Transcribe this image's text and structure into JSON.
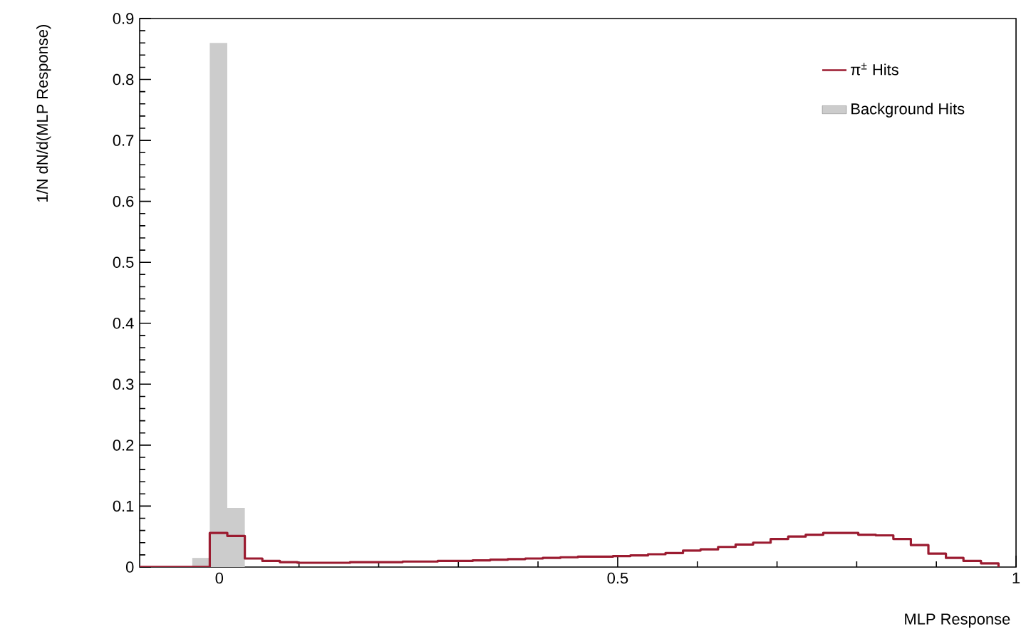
{
  "chart_data": {
    "type": "histogram",
    "xlabel": "MLP Response",
    "ylabel": "1/N dN/d(MLP Response)",
    "bins": [
      -0.1,
      -0.078,
      -0.056,
      -0.034,
      -0.012,
      0.01,
      0.032,
      0.054,
      0.076,
      0.098,
      0.12,
      0.142,
      0.164,
      0.186,
      0.208,
      0.23,
      0.252,
      0.274,
      0.296,
      0.318,
      0.34,
      0.362,
      0.384,
      0.406,
      0.428,
      0.45,
      0.472,
      0.494,
      0.516,
      0.538,
      0.56,
      0.582,
      0.604,
      0.626,
      0.648,
      0.67,
      0.692,
      0.714,
      0.736,
      0.758,
      0.78,
      0.802,
      0.824,
      0.846,
      0.868,
      0.89,
      0.912,
      0.934,
      0.956,
      0.978,
      1.0
    ],
    "series": [
      {
        "name": "Background Hits",
        "color": "#cccccc",
        "values": [
          0,
          0,
          0,
          0.015,
          0.86,
          0.097,
          0,
          0,
          0,
          0,
          0,
          0,
          0,
          0,
          0,
          0,
          0,
          0,
          0,
          0,
          0,
          0,
          0,
          0,
          0,
          0,
          0,
          0,
          0,
          0,
          0,
          0,
          0,
          0,
          0,
          0,
          0,
          0,
          0,
          0,
          0,
          0,
          0,
          0,
          0,
          0,
          0,
          0,
          0,
          0
        ]
      },
      {
        "name": "π$^{±}$ Hits",
        "type": "step",
        "color": "#9b1b30",
        "x": [
          -0.1,
          -0.078,
          -0.056,
          -0.034,
          -0.012,
          0.01,
          0.032,
          0.054,
          0.076,
          0.098,
          0.12,
          0.142,
          0.164,
          0.186,
          0.208,
          0.23,
          0.252,
          0.274,
          0.296,
          0.318,
          0.34,
          0.362,
          0.384,
          0.406,
          0.428,
          0.45,
          0.472,
          0.494,
          0.516,
          0.538,
          0.56,
          0.582,
          0.604,
          0.626,
          0.648,
          0.67,
          0.692,
          0.714,
          0.736,
          0.758,
          0.78,
          0.802,
          0.824,
          0.846,
          0.868,
          0.89,
          0.912,
          0.934,
          0.956,
          0.978
        ],
        "values": [
          0,
          0,
          0,
          0,
          0.056,
          0.051,
          0.014,
          0.01,
          0.008,
          0.007,
          0.007,
          0.007,
          0.008,
          0.008,
          0.008,
          0.009,
          0.009,
          0.01,
          0.01,
          0.011,
          0.012,
          0.013,
          0.014,
          0.015,
          0.016,
          0.017,
          0.017,
          0.018,
          0.019,
          0.021,
          0.023,
          0.027,
          0.029,
          0.033,
          0.037,
          0.04,
          0.046,
          0.05,
          0.053,
          0.056,
          0.056,
          0.053,
          0.052,
          0.046,
          0.036,
          0.022,
          0.015,
          0.01,
          0.006,
          0
        ]
      }
    ],
    "xlim": [
      -0.1,
      1.0
    ],
    "ylim": [
      0,
      0.9
    ],
    "xticks": [
      0,
      0.5,
      1
    ],
    "yticks": [
      0,
      0.1,
      0.2,
      0.3,
      0.4,
      0.5,
      0.6,
      0.7,
      0.8,
      0.9
    ],
    "legend": "top right",
    "grid": false
  }
}
